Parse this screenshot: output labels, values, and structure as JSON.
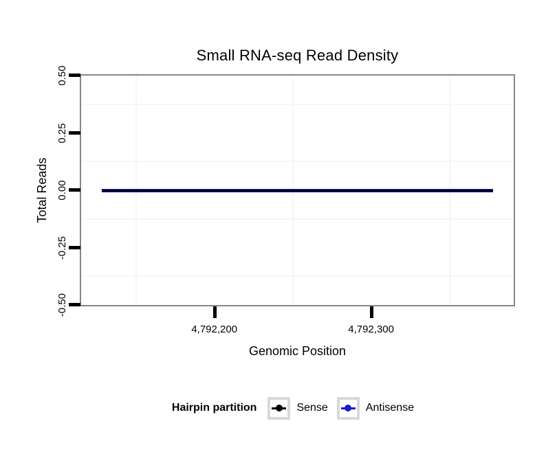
{
  "figure": {
    "background": "#ffffff"
  },
  "chart_data": {
    "type": "line",
    "title": "Small RNA-seq Read Density",
    "xlabel": "Genomic Position",
    "ylabel": "Total Reads",
    "xlim": [
      4792115,
      4792391
    ],
    "ylim": [
      -0.5,
      0.5
    ],
    "x_ticks": [
      {
        "value": 4792200,
        "label": "4,792,200"
      },
      {
        "value": 4792300,
        "label": "4,792,300"
      }
    ],
    "y_ticks": [
      {
        "value": 0.5,
        "label": "0.50"
      },
      {
        "value": 0.25,
        "label": "0.25"
      },
      {
        "value": 0.0,
        "label": "0.00"
      },
      {
        "value": -0.25,
        "label": "-0.25"
      },
      {
        "value": -0.5,
        "label": "-0.50"
      }
    ],
    "x_minor_gridlines": [
      4792150,
      4792250,
      4792350
    ],
    "y_minor_gridlines": [
      0.375,
      0.125,
      -0.125,
      -0.375
    ],
    "grid": "minor-only",
    "legend_position": "bottom",
    "legend": {
      "title": "Hairpin partition",
      "entries": [
        {
          "label": "Sense",
          "color": "#000000"
        },
        {
          "label": "Antisense",
          "color": "#1a1ad2"
        }
      ]
    },
    "series": [
      {
        "name": "Antisense",
        "color": "#1a1ad2",
        "x": [
          4792128,
          4792378
        ],
        "y": [
          0,
          0
        ]
      },
      {
        "name": "Sense",
        "color": "#000000",
        "x": [
          4792128,
          4792378
        ],
        "y": [
          0,
          0
        ]
      }
    ],
    "colors": {
      "panel_border": "#868686",
      "gridline": "#f6f6f6",
      "tick": "#000000",
      "legend_key_border": "#d9d9d9",
      "text": "#000000"
    }
  }
}
